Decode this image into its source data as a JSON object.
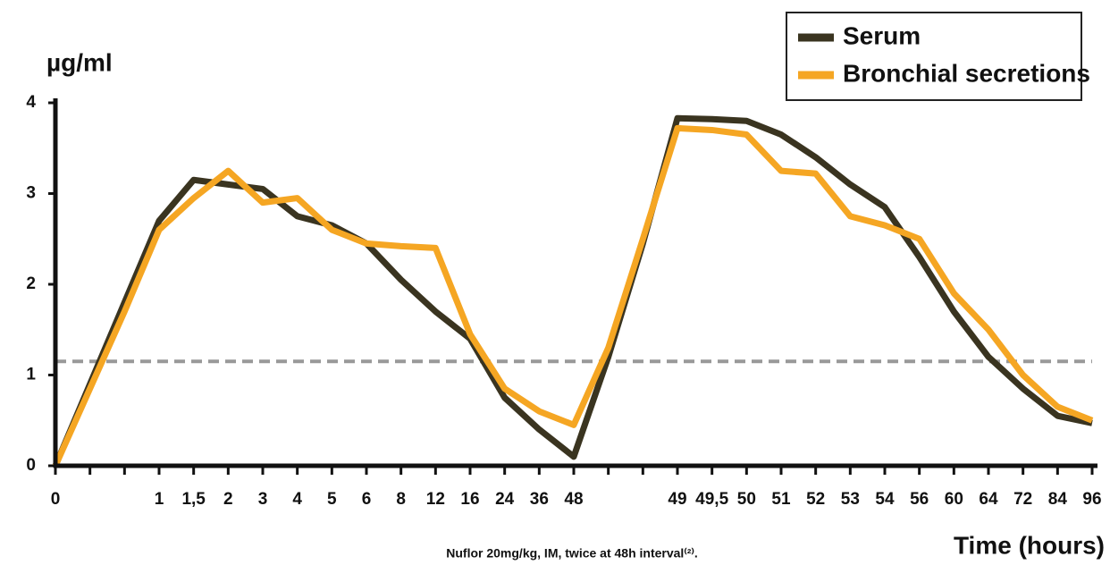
{
  "chart_data": {
    "type": "line",
    "y_label": "µg/ml",
    "x_label": "Time (hours)",
    "footnote": "Nuflor 20mg/kg, IM, twice at 48h interval⁽²⁾.",
    "categories": [
      "0",
      null,
      null,
      "1",
      "1,5",
      "2",
      "3",
      "4",
      "5",
      "6",
      "8",
      "12",
      "16",
      "24",
      "36",
      "48",
      null,
      null,
      "49",
      "49,5",
      "50",
      "51",
      "52",
      "53",
      "54",
      "56",
      "60",
      "64",
      "72",
      "84",
      "96"
    ],
    "series": [
      {
        "name": "Serum",
        "color": "#3a3420",
        "values": [
          0,
          0.9,
          1.8,
          2.7,
          3.15,
          3.1,
          3.05,
          2.75,
          2.65,
          2.45,
          2.05,
          1.7,
          1.4,
          0.75,
          0.4,
          0.1,
          1.2,
          2.45,
          3.83,
          3.82,
          3.8,
          3.65,
          3.4,
          3.1,
          2.85,
          2.3,
          1.7,
          1.2,
          0.85,
          0.55,
          0.47
        ]
      },
      {
        "name": "Bronchial secretions",
        "color": "#f5a623",
        "values": [
          0,
          0.85,
          1.7,
          2.6,
          2.95,
          3.25,
          2.9,
          2.95,
          2.6,
          2.45,
          2.42,
          2.4,
          1.45,
          0.85,
          0.6,
          0.45,
          1.3,
          2.5,
          3.72,
          3.7,
          3.65,
          3.25,
          3.22,
          2.75,
          2.65,
          2.5,
          1.9,
          1.5,
          1.0,
          0.65,
          0.5
        ]
      }
    ],
    "threshold": 1.15,
    "threshold_color": "#999999",
    "ylim": [
      0,
      4
    ],
    "yticks": [
      0,
      1,
      2,
      3,
      4
    ],
    "legend": "top-right"
  }
}
